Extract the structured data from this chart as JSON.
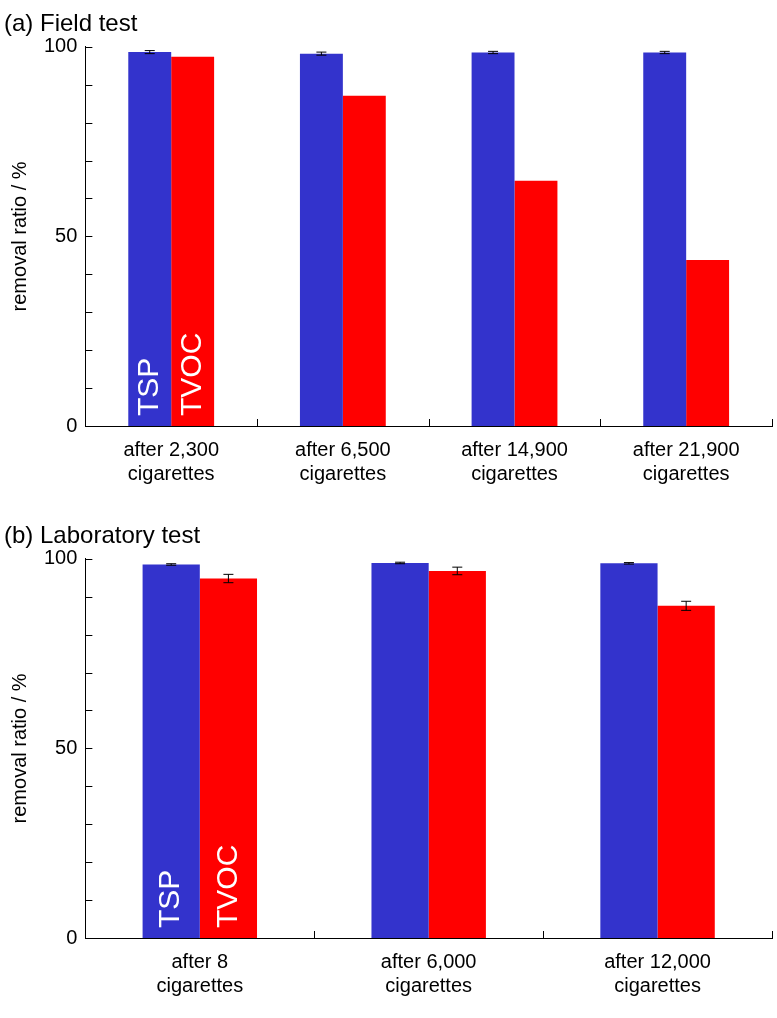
{
  "chart_data": [
    {
      "type": "bar",
      "title": "(a) Field test",
      "ylabel": "removal ratio / %",
      "categories": [
        "after 2,300\ncigarettes",
        "after 6,500\ncigarettes",
        "after 14,900\ncigarettes",
        "after 21,900\ncigarettes"
      ],
      "series": [
        {
          "name": "TSP",
          "color": "#3333cc",
          "values": [
            98.6,
            98.2,
            98.5,
            98.5
          ],
          "errors": [
            0.4,
            0.4,
            0.3,
            0.3
          ]
        },
        {
          "name": "TVOC",
          "color": "#ff0000",
          "values": [
            97.4,
            87.1,
            64.7,
            43.8
          ]
        }
      ],
      "ylim": [
        0,
        100
      ],
      "yticks": [
        0,
        {
          "value": 10,
          "label": null
        },
        {
          "value": 20,
          "label": null
        },
        {
          "value": 30,
          "label": null
        },
        {
          "value": 40,
          "label": null
        },
        50,
        {
          "value": 60,
          "label": null
        },
        {
          "value": 70,
          "label": null
        },
        {
          "value": 80,
          "label": null
        },
        {
          "value": 90,
          "label": null
        },
        100
      ],
      "legend": false
    },
    {
      "type": "bar",
      "title": "(b) Laboratory test",
      "ylabel": "removal ratio / %",
      "categories": [
        "after 8\ncigarettes",
        "after 6,000\ncigarettes",
        "after 12,000\ncigarettes"
      ],
      "series": [
        {
          "name": "TSP",
          "color": "#3333cc",
          "values": [
            98.5,
            98.9,
            98.8
          ],
          "errors": [
            0.2,
            0.2,
            0.2
          ]
        },
        {
          "name": "TVOC",
          "color": "#ff0000",
          "values": [
            94.8,
            96.8,
            87.6
          ],
          "errors": [
            1.1,
            1.0,
            1.2
          ]
        }
      ],
      "ylim": [
        0,
        100
      ],
      "yticks": [
        0,
        {
          "value": 10,
          "label": null
        },
        {
          "value": 20,
          "label": null
        },
        {
          "value": 30,
          "label": null
        },
        {
          "value": 40,
          "label": null
        },
        50,
        {
          "value": 60,
          "label": null
        },
        {
          "value": 70,
          "label": null
        },
        {
          "value": 80,
          "label": null
        },
        {
          "value": 90,
          "label": null
        },
        100
      ],
      "legend": false
    }
  ]
}
